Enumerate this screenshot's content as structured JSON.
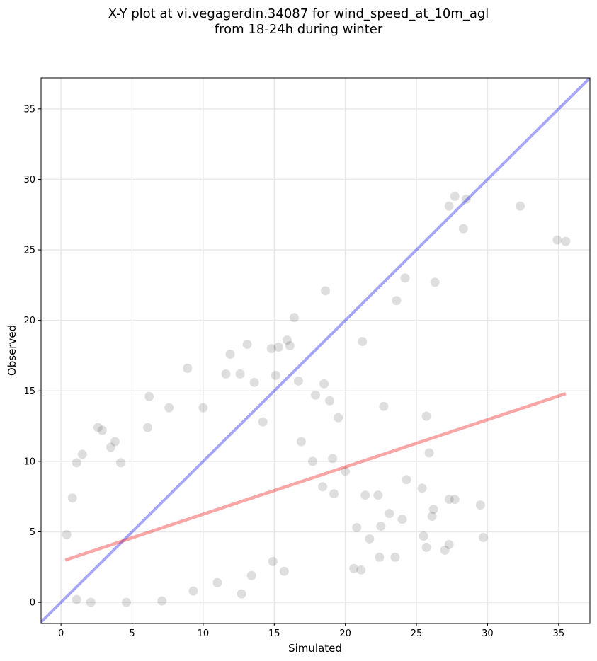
{
  "chart_data": {
    "type": "scatter",
    "title_line1": "X-Y plot at vi.vegagerdin.34087 for wind_speed_at_10m_agl",
    "title_line2": "from 18-24h during winter",
    "xlabel": "Simulated",
    "ylabel": "Observed",
    "xlim": [
      -1.4,
      37.2
    ],
    "ylim": [
      -1.5,
      37.2
    ],
    "xticks": [
      0,
      5,
      10,
      15,
      20,
      25,
      30,
      35
    ],
    "yticks": [
      0,
      5,
      10,
      15,
      20,
      25,
      30,
      35
    ],
    "grid": true,
    "colors": {
      "points": "#000000",
      "identity_line": "#0000ee",
      "fit_line": "#ee0000",
      "grid": "#e8e8e8"
    },
    "identity_line": {
      "x": [
        -1.4,
        37.2
      ],
      "y": [
        -1.4,
        37.2
      ]
    },
    "fit_line": {
      "x": [
        0.3,
        35.5
      ],
      "y": [
        3.0,
        14.8
      ]
    },
    "points": [
      [
        35.5,
        25.6
      ],
      [
        34.9,
        25.7
      ],
      [
        32.3,
        28.1
      ],
      [
        28.5,
        28.6
      ],
      [
        27.7,
        28.8
      ],
      [
        27.3,
        28.1
      ],
      [
        28.3,
        26.5
      ],
      [
        26.3,
        22.7
      ],
      [
        24.2,
        23.0
      ],
      [
        23.6,
        21.4
      ],
      [
        18.6,
        22.1
      ],
      [
        21.2,
        18.5
      ],
      [
        16.4,
        20.2
      ],
      [
        15.9,
        18.6
      ],
      [
        15.3,
        18.1
      ],
      [
        14.8,
        18.0
      ],
      [
        13.1,
        18.3
      ],
      [
        11.9,
        17.6
      ],
      [
        8.9,
        16.6
      ],
      [
        11.6,
        16.2
      ],
      [
        16.1,
        18.2
      ],
      [
        18.5,
        15.5
      ],
      [
        19.5,
        13.1
      ],
      [
        22.7,
        13.9
      ],
      [
        25.7,
        13.2
      ],
      [
        25.9,
        10.6
      ],
      [
        29.5,
        6.9
      ],
      [
        29.7,
        4.6
      ],
      [
        27.3,
        4.1
      ],
      [
        27.0,
        3.7
      ],
      [
        27.3,
        7.3
      ],
      [
        27.7,
        7.3
      ],
      [
        26.2,
        6.6
      ],
      [
        25.4,
        8.1
      ],
      [
        24.3,
        8.7
      ],
      [
        2.6,
        12.4
      ],
      [
        2.9,
        12.2
      ],
      [
        3.5,
        11.0
      ],
      [
        3.8,
        11.4
      ],
      [
        1.5,
        10.5
      ],
      [
        1.1,
        9.9
      ],
      [
        6.1,
        12.4
      ],
      [
        0.8,
        7.4
      ],
      [
        0.4,
        4.8
      ],
      [
        4.2,
        9.9
      ],
      [
        23.5,
        3.2
      ],
      [
        21.1,
        2.3
      ],
      [
        20.6,
        2.4
      ],
      [
        22.4,
        3.2
      ],
      [
        25.7,
        3.9
      ],
      [
        7.1,
        0.1
      ],
      [
        4.6,
        0.0
      ],
      [
        2.1,
        0.0
      ],
      [
        1.1,
        0.2
      ],
      [
        12.7,
        0.6
      ],
      [
        6.2,
        14.6
      ],
      [
        7.6,
        13.8
      ],
      [
        10.0,
        13.8
      ],
      [
        12.6,
        16.2
      ],
      [
        13.6,
        15.6
      ],
      [
        15.1,
        16.1
      ],
      [
        16.7,
        15.7
      ],
      [
        17.9,
        14.7
      ],
      [
        14.2,
        12.8
      ],
      [
        18.9,
        14.3
      ],
      [
        20.0,
        9.3
      ],
      [
        21.4,
        7.6
      ],
      [
        22.3,
        7.6
      ],
      [
        23.1,
        6.3
      ],
      [
        24.0,
        5.9
      ],
      [
        20.8,
        5.3
      ],
      [
        21.7,
        4.5
      ],
      [
        22.5,
        5.4
      ],
      [
        25.5,
        4.7
      ],
      [
        26.1,
        6.1
      ],
      [
        19.2,
        7.7
      ],
      [
        18.4,
        8.2
      ],
      [
        17.7,
        10.0
      ],
      [
        16.9,
        11.4
      ],
      [
        19.1,
        10.2
      ],
      [
        15.7,
        2.2
      ],
      [
        13.4,
        1.9
      ],
      [
        14.9,
        2.9
      ],
      [
        11.0,
        1.4
      ],
      [
        9.3,
        0.8
      ]
    ]
  }
}
